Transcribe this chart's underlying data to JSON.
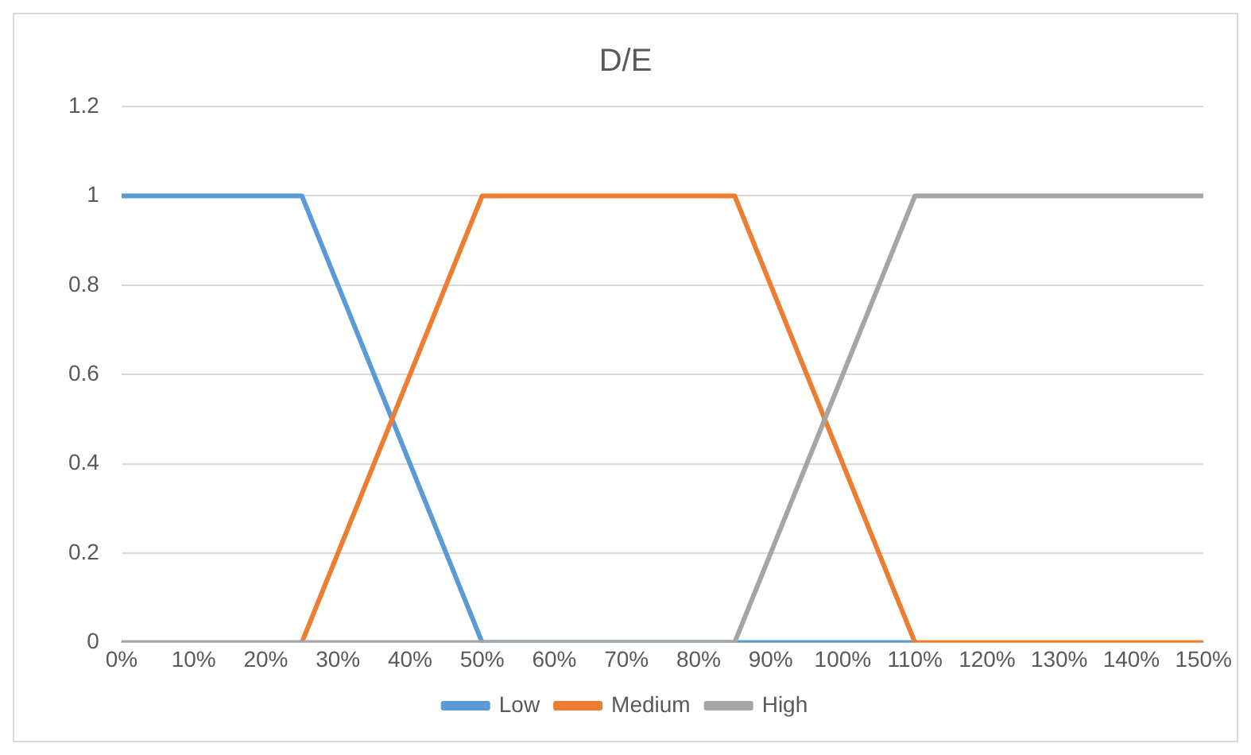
{
  "chart_data": {
    "type": "line",
    "title": "D/E",
    "series": [
      {
        "name": "Low",
        "color": "#5b9bd5",
        "x": [
          0,
          25,
          50,
          110
        ],
        "values": [
          1,
          1,
          0,
          0
        ]
      },
      {
        "name": "Medium",
        "color": "#ed7d31",
        "x": [
          25,
          50,
          85,
          110,
          150
        ],
        "values": [
          0,
          1,
          1,
          0,
          0
        ]
      },
      {
        "name": "High",
        "color": "#a5a5a5",
        "x": [
          0,
          85,
          110,
          150
        ],
        "values": [
          0,
          0,
          1,
          1
        ]
      }
    ],
    "xlim": [
      0,
      150
    ],
    "xticks": [
      {
        "value": 0,
        "label": "0%"
      },
      {
        "value": 10,
        "label": "10%"
      },
      {
        "value": 20,
        "label": "20%"
      },
      {
        "value": 30,
        "label": "30%"
      },
      {
        "value": 40,
        "label": "40%"
      },
      {
        "value": 50,
        "label": "50%"
      },
      {
        "value": 60,
        "label": "60%"
      },
      {
        "value": 70,
        "label": "70%"
      },
      {
        "value": 80,
        "label": "80%"
      },
      {
        "value": 90,
        "label": "90%"
      },
      {
        "value": 100,
        "label": "100%"
      },
      {
        "value": 110,
        "label": "110%"
      },
      {
        "value": 120,
        "label": "120%"
      },
      {
        "value": 130,
        "label": "130%"
      },
      {
        "value": 140,
        "label": "140%"
      },
      {
        "value": 150,
        "label": "150%"
      }
    ],
    "ylim": [
      0,
      1.2
    ],
    "yticks": [
      0,
      0.2,
      0.4,
      0.6,
      0.8,
      1,
      1.2
    ],
    "grid": "y",
    "legend": "bottom",
    "marker": "none",
    "line_style": "solid"
  }
}
